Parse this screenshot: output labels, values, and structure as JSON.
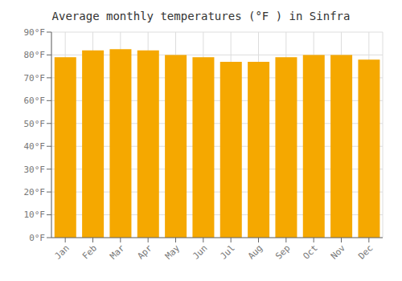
{
  "chart_data": {
    "type": "bar",
    "title": "Average monthly temperatures (°F ) in Sinfra",
    "categories": [
      "Jan",
      "Feb",
      "Mar",
      "Apr",
      "May",
      "Jun",
      "Jul",
      "Aug",
      "Sep",
      "Oct",
      "Nov",
      "Dec"
    ],
    "values": [
      79,
      82,
      82.5,
      82,
      80,
      79,
      77,
      77,
      79,
      80,
      80,
      78
    ],
    "color": "#F5A800",
    "ylim": [
      0,
      90
    ],
    "yticks": [
      {
        "value": 0,
        "label": "0°F"
      },
      {
        "value": 10,
        "label": "10°F"
      },
      {
        "value": 20,
        "label": "20°F"
      },
      {
        "value": 30,
        "label": "30°F"
      },
      {
        "value": 40,
        "label": "40°F"
      },
      {
        "value": 50,
        "label": "50°F"
      },
      {
        "value": 60,
        "label": "60°F"
      },
      {
        "value": 70,
        "label": "70°F"
      },
      {
        "value": 80,
        "label": "80°F"
      },
      {
        "value": 90,
        "label": "90°F"
      }
    ],
    "grid": true
  }
}
